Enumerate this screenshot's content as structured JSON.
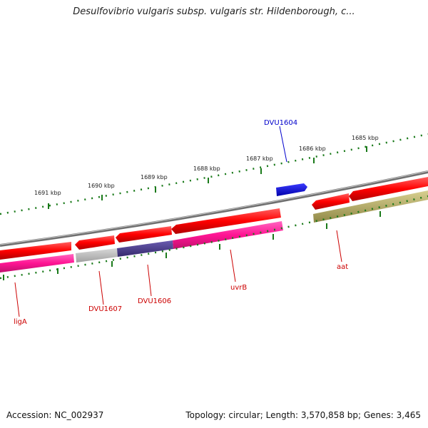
{
  "title": "Desulfovibrio vulgaris subsp. vulgaris str. Hildenborough, c...",
  "footer": {
    "accession": "Accession: NC_002937",
    "stats": "Topology: circular; Length: 3,570,858 bp; Genes: 3,465"
  },
  "scale_labels": [
    "1691 kbp",
    "1690 kbp",
    "1689 kbp",
    "1688 kbp",
    "1687 kbp",
    "1686 kbp",
    "1685 kbp"
  ],
  "gene_labels": {
    "dvu1604": "DVU1604",
    "liga": "ligA",
    "dvu1607": "DVU1607",
    "dvu1606": "DVU1606",
    "uvrb": "uvrB",
    "aat": "aat"
  },
  "colors": {
    "cds": "#ff0000",
    "gene_magenta": "#ff1493",
    "gene_grey": "#b8b8b8",
    "gene_navy": "#4b3c8c",
    "gene_olive": "#a9a060",
    "blue_feature": "#0000ee",
    "backbone": "#777777",
    "ticks": "#1a7a1a",
    "label_blue": "#0000cc",
    "label_red": "#cc0000"
  }
}
